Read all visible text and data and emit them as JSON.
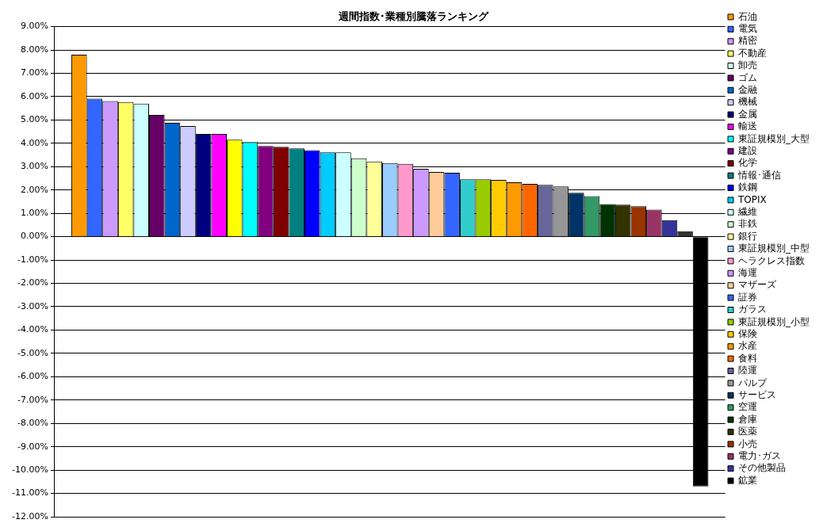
{
  "chart_data": {
    "type": "bar",
    "title": "週間指数･業種別騰落ランキング",
    "categories": [
      null
    ],
    "ylim": [
      -12,
      9
    ],
    "yticks": [
      {
        "value": -12,
        "label": "-12.00%"
      },
      {
        "value": -11,
        "label": "-11.00%"
      },
      {
        "value": -10,
        "label": "-10.00%"
      },
      {
        "value": -9,
        "label": "-9.00%"
      },
      {
        "value": -8,
        "label": "-8.00%"
      },
      {
        "value": -7,
        "label": "-7.00%"
      },
      {
        "value": -6,
        "label": "-6.00%"
      },
      {
        "value": -5,
        "label": "-5.00%"
      },
      {
        "value": -4,
        "label": "-4.00%"
      },
      {
        "value": -3,
        "label": "-3.00%"
      },
      {
        "value": -2,
        "label": "-2.00%"
      },
      {
        "value": -1,
        "label": "-1.00%"
      },
      {
        "value": 0,
        "label": "0.00%"
      },
      {
        "value": 1,
        "label": "1.00%"
      },
      {
        "value": 2,
        "label": "2.00%"
      },
      {
        "value": 3,
        "label": "3.00%"
      },
      {
        "value": 4,
        "label": "4.00%"
      },
      {
        "value": 5,
        "label": "5.00%"
      },
      {
        "value": 6,
        "label": "6.00%"
      },
      {
        "value": 7,
        "label": "7.00%"
      },
      {
        "value": 8,
        "label": "8.00%"
      },
      {
        "value": 9,
        "label": "9.00%"
      }
    ],
    "grid": "y",
    "tick_labels": "y",
    "legend": "right",
    "series": [
      {
        "name": "石油",
        "color": "#ff9900",
        "values": [
          7.8
        ]
      },
      {
        "name": "電気",
        "color": "#3366ff",
        "values": [
          5.91
        ]
      },
      {
        "name": "精密",
        "color": "#cc99ff",
        "values": [
          5.81
        ]
      },
      {
        "name": "不動産",
        "color": "#ffff66",
        "values": [
          5.77
        ]
      },
      {
        "name": "卸売",
        "color": "#ccffff",
        "values": [
          5.7
        ]
      },
      {
        "name": "ゴム",
        "color": "#660066",
        "values": [
          5.22
        ]
      },
      {
        "name": "金融",
        "color": "#0066cc",
        "values": [
          4.88
        ]
      },
      {
        "name": "機械",
        "color": "#ccccff",
        "values": [
          4.74
        ]
      },
      {
        "name": "金属",
        "color": "#000080",
        "values": [
          4.4
        ]
      },
      {
        "name": "輸送",
        "color": "#ff00ff",
        "values": [
          4.4
        ]
      },
      {
        "color": "#ffff00",
        "values": [
          4.16
        ]
      },
      {
        "name": "東証規模別_大型",
        "color": "#00ffff",
        "values": [
          4.05
        ]
      },
      {
        "name": "建設",
        "color": "#800080",
        "values": [
          3.88
        ]
      },
      {
        "name": "化学",
        "color": "#800000",
        "values": [
          3.85
        ]
      },
      {
        "name": "情報･通信",
        "color": "#008080",
        "values": [
          3.78
        ]
      },
      {
        "name": "鉄鋼",
        "color": "#0000ff",
        "values": [
          3.71
        ]
      },
      {
        "name": "TOPIX",
        "color": "#00ccff",
        "values": [
          3.61
        ]
      },
      {
        "name": "繊維",
        "color": "#ccffff",
        "values": [
          3.61
        ]
      },
      {
        "name": "非鉄",
        "color": "#ccffcc",
        "values": [
          3.36
        ]
      },
      {
        "name": "銀行",
        "color": "#ffff99",
        "values": [
          3.22
        ]
      },
      {
        "name": "東証規模別_中型",
        "color": "#99ccff",
        "values": [
          3.15
        ]
      },
      {
        "name": "ヘラクレス指数",
        "color": "#ff99cc",
        "values": [
          3.12
        ]
      },
      {
        "name": "海運",
        "color": "#cc99ff",
        "values": [
          2.91
        ]
      },
      {
        "name": "マザーズ",
        "color": "#ffcc99",
        "values": [
          2.77
        ]
      },
      {
        "name": "証券",
        "color": "#3366ff",
        "values": [
          2.74
        ]
      },
      {
        "name": "ガラス",
        "color": "#33cccc",
        "values": [
          2.46
        ]
      },
      {
        "name": "東証規模別_小型",
        "color": "#99cc00",
        "values": [
          2.46
        ]
      },
      {
        "name": "保険",
        "color": "#ffcc00",
        "values": [
          2.43
        ]
      },
      {
        "name": "水産",
        "color": "#ff9900",
        "values": [
          2.33
        ]
      },
      {
        "name": "食料",
        "color": "#ff6600",
        "values": [
          2.26
        ]
      },
      {
        "name": "陸運",
        "color": "#666699",
        "values": [
          2.22
        ]
      },
      {
        "name": "パルプ",
        "color": "#969696",
        "values": [
          2.15
        ]
      },
      {
        "name": "サービス",
        "color": "#003366",
        "values": [
          1.88
        ]
      },
      {
        "name": "空運",
        "color": "#339966",
        "values": [
          1.74
        ]
      },
      {
        "name": "倉庫",
        "color": "#003300",
        "values": [
          1.4
        ]
      },
      {
        "name": "医薬",
        "color": "#333300",
        "values": [
          1.37
        ]
      },
      {
        "name": "小売",
        "color": "#993300",
        "values": [
          1.3
        ]
      },
      {
        "name": "電力･ガス",
        "color": "#993366",
        "values": [
          1.16
        ]
      },
      {
        "name": "その他製品",
        "color": "#333399",
        "values": [
          0.71
        ]
      },
      {
        "color": "#333333",
        "values": [
          0.23
        ]
      },
      {
        "name": "鉱業",
        "color": "#000000",
        "values": [
          -10.7
        ]
      }
    ]
  }
}
